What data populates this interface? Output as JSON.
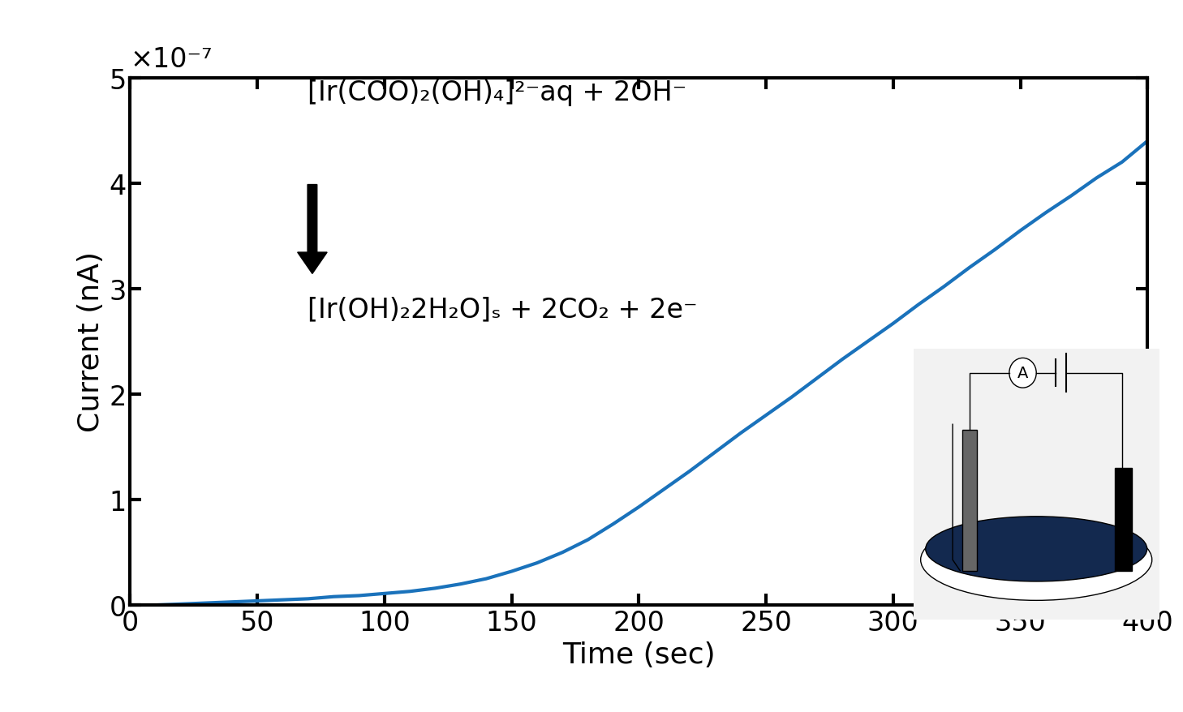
{
  "chart_data": {
    "type": "line",
    "x_label": "Time (sec)",
    "y_label": "Current (nA)",
    "y_multiplier": "×10⁻⁷",
    "annotations": [
      "[Ir(COO)₂(OH)₄]²⁻aq + 2OH⁻",
      "[Ir(OH)₂2H₂O]ₛ + 2CO₂ + 2e⁻"
    ],
    "inset_label": "A",
    "x": [
      0,
      10,
      20,
      30,
      40,
      50,
      60,
      70,
      80,
      90,
      100,
      110,
      120,
      130,
      140,
      150,
      160,
      170,
      180,
      190,
      200,
      210,
      220,
      230,
      240,
      250,
      260,
      270,
      280,
      290,
      300,
      310,
      320,
      330,
      340,
      350,
      360,
      370,
      380,
      390,
      400
    ],
    "values": [
      0,
      0,
      0.01,
      0.02,
      0.03,
      0.04,
      0.05,
      0.06,
      0.08,
      0.09,
      0.11,
      0.13,
      0.16,
      0.2,
      0.25,
      0.32,
      0.4,
      0.5,
      0.62,
      0.77,
      0.93,
      1.1,
      1.27,
      1.45,
      1.63,
      1.8,
      1.97,
      2.15,
      2.33,
      2.5,
      2.67,
      2.85,
      3.02,
      3.2,
      3.37,
      3.55,
      3.72,
      3.88,
      4.05,
      4.2,
      4.4
    ],
    "color": "#1a72bb",
    "xlim": [
      0,
      400
    ],
    "xticks": [
      0,
      50,
      100,
      150,
      200,
      250,
      300,
      350,
      400
    ],
    "ylim": [
      0,
      5
    ],
    "yticks": [
      0,
      1,
      2,
      3,
      4,
      5
    ],
    "grid": false
  }
}
